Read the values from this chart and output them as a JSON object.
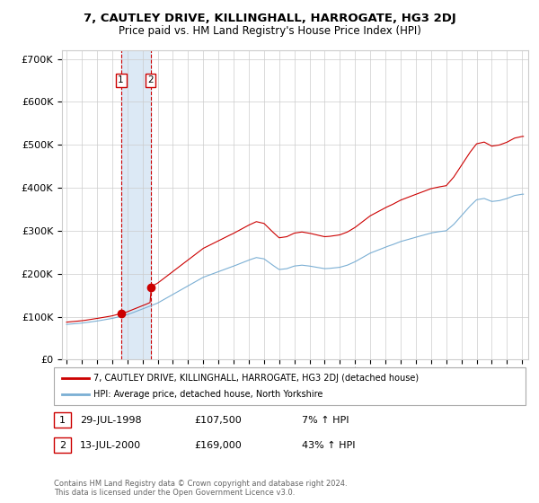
{
  "title": "7, CAUTLEY DRIVE, KILLINGHALL, HARROGATE, HG3 2DJ",
  "subtitle": "Price paid vs. HM Land Registry's House Price Index (HPI)",
  "ylim": [
    0,
    720000
  ],
  "yticks": [
    0,
    100000,
    200000,
    300000,
    400000,
    500000,
    600000,
    700000
  ],
  "sale1_date": "29-JUL-1998",
  "sale1_price": 107500,
  "sale1_x": 1998.58,
  "sale2_date": "13-JUL-2000",
  "sale2_price": 169000,
  "sale2_x": 2000.53,
  "legend_line1": "7, CAUTLEY DRIVE, KILLINGHALL, HARROGATE, HG3 2DJ (detached house)",
  "legend_line2": "HPI: Average price, detached house, North Yorkshire",
  "footnote": "Contains HM Land Registry data © Crown copyright and database right 2024.\nThis data is licensed under the Open Government Licence v3.0.",
  "line_color_red": "#cc0000",
  "line_color_blue": "#7bafd4",
  "highlight_color": "#dce9f5",
  "grid_color": "#cccccc",
  "background_color": "#ffffff",
  "table_row1": [
    "1",
    "29-JUL-1998",
    "£107,500",
    "7% ↑ HPI"
  ],
  "table_row2": [
    "2",
    "13-JUL-2000",
    "£169,000",
    "43% ↑ HPI"
  ]
}
